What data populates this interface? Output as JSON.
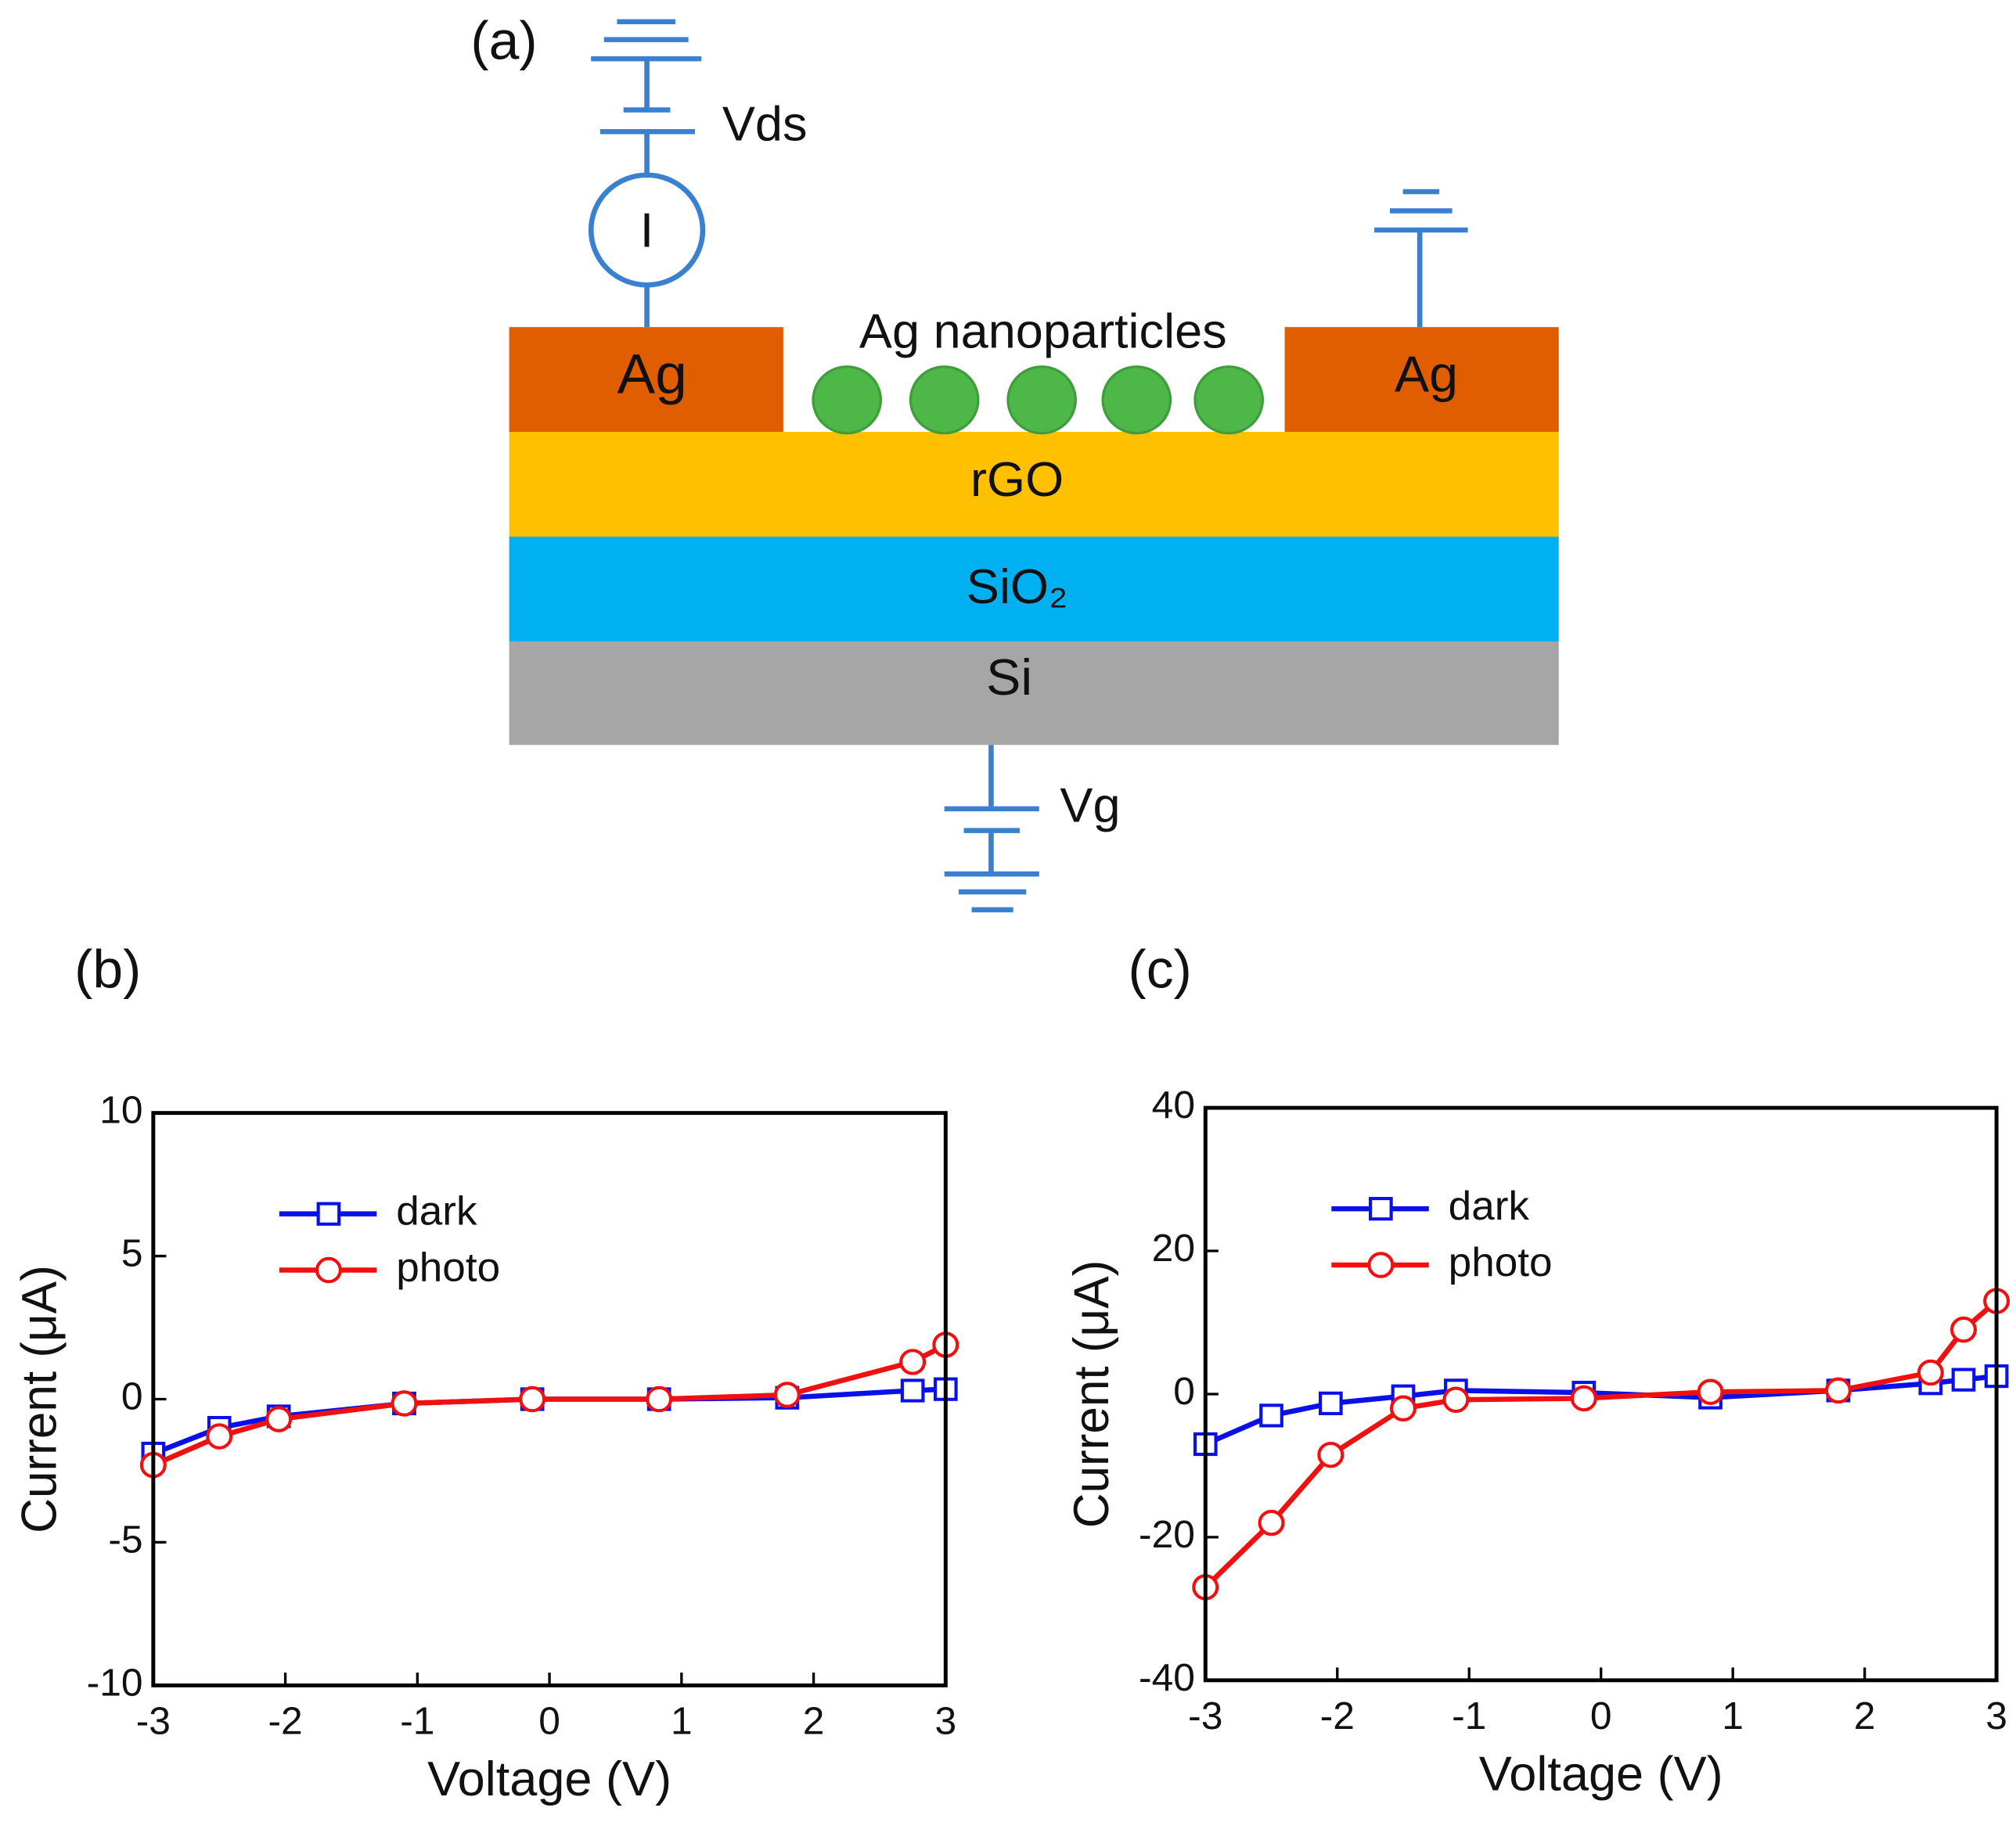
{
  "diagram": {
    "panel": "(a)",
    "source_label": "Vds",
    "meter_label": "I",
    "left_contact": "Ag",
    "particles_label": "Ag nanoparticles",
    "right_contact": "Ag",
    "layer_1": "rGO",
    "layer_2": "SiO₂",
    "layer_3": "Si",
    "gate_label": "Vg"
  },
  "chart_data": [
    {
      "type": "line",
      "panel": "(b)",
      "x_label": "Voltage (V)",
      "y_label": "Current (μA)",
      "x": [
        -3,
        -2.5,
        -2.05,
        -1.1,
        -0.13,
        0.83,
        1.8,
        2.75,
        3
      ],
      "series": [
        {
          "name": "dark",
          "color": "#0a10e8",
          "marker": "square",
          "values": [
            -1.9,
            -1.0,
            -0.6,
            -0.15,
            0,
            0,
            0.05,
            0.3,
            0.35
          ]
        },
        {
          "name": "photo",
          "color": "#f01010",
          "marker": "circle",
          "values": [
            -2.3,
            -1.3,
            -0.7,
            -0.15,
            0,
            0,
            0.15,
            1.3,
            1.9
          ]
        }
      ],
      "xlim": [
        -3,
        3
      ],
      "ylim": [
        -10,
        10
      ],
      "xticks": [
        -3,
        -2,
        -1,
        0,
        1,
        2,
        3
      ],
      "yticks": [
        -10,
        -5,
        0,
        5,
        10
      ],
      "legend": "upper left"
    },
    {
      "type": "line",
      "panel": "(c)",
      "x_label": "Voltage (V)",
      "y_label": "Current (μA)",
      "x": [
        -3,
        -2.5,
        -2.05,
        -1.5,
        -1.1,
        -0.13,
        0.83,
        1.8,
        2.5,
        2.75,
        3
      ],
      "series": [
        {
          "name": "dark",
          "color": "#0a10e8",
          "marker": "square",
          "values": [
            -7,
            -3,
            -1.3,
            -0.3,
            0.5,
            0.2,
            -0.5,
            0.5,
            1.5,
            2,
            2.5
          ]
        },
        {
          "name": "photo",
          "color": "#f01010",
          "marker": "circle",
          "values": [
            -27,
            -18,
            -8.5,
            -2,
            -0.8,
            -0.6,
            0.3,
            0.5,
            3,
            9,
            13
          ]
        }
      ],
      "xlim": [
        -3,
        3
      ],
      "ylim": [
        -40,
        40
      ],
      "xticks": [
        -3,
        -2,
        -1,
        0,
        1,
        2,
        3
      ],
      "yticks": [
        -40,
        -20,
        0,
        20,
        40
      ],
      "legend": "upper left"
    }
  ]
}
